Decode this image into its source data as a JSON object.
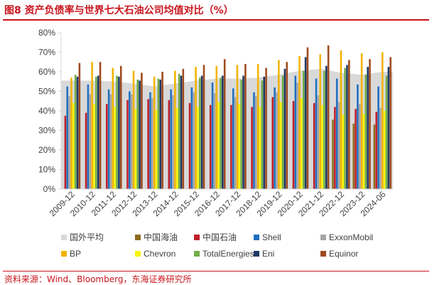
{
  "figure": {
    "title": "图8  资产负债率与世界七大石油公司均值对比（%）",
    "source": "资料来源：Wind、Bloomberg，东海证券研究所"
  },
  "colors": {
    "title_red": "#c8141d",
    "axis": "#d9d9d9",
    "series": [
      "#d9d9d9",
      "#8c6d1f",
      "#c0202a",
      "#1f6fbf",
      "#a6a6a6",
      "#f2b300",
      "#f7f500",
      "#70ad47",
      "#1f3864",
      "#9e4a1e"
    ]
  },
  "chart_data": {
    "type": "bar",
    "title": "",
    "xlabel": "",
    "ylabel": "",
    "ylim": [
      0,
      80
    ],
    "yticks": [
      0,
      10,
      20,
      30,
      40,
      50,
      60,
      70,
      80
    ],
    "ytick_labels": [
      "0%",
      "10%",
      "20%",
      "30%",
      "40%",
      "50%",
      "60%",
      "70%",
      "80%"
    ],
    "grid": false,
    "legend_position": "bottom",
    "categories": [
      "2009-12",
      "2010-12",
      "2011-12",
      "2012-12",
      "2013-12",
      "2014-12",
      "2015-12",
      "2016-12",
      "2017-12",
      "2018-12",
      "2019-12",
      "2020-12",
      "2021-12",
      "2022-12",
      "2023-12",
      "2024-06"
    ],
    "series": [
      {
        "name": "国外平均",
        "type": "area",
        "values": [
          55.5,
          55.5,
          55.0,
          54.0,
          52.5,
          54.0,
          55.5,
          56.5,
          56.5,
          57.0,
          58.5,
          60.5,
          61.5,
          59.5,
          58.5,
          60.0
        ]
      },
      {
        "name": "中国海油",
        "values": [
          null,
          null,
          null,
          null,
          null,
          null,
          null,
          null,
          null,
          null,
          null,
          null,
          null,
          35.5,
          33.5,
          33.0
        ]
      },
      {
        "name": "中国石油",
        "values": [
          37.5,
          39.0,
          43.5,
          45.5,
          46.0,
          45.5,
          44.0,
          43.0,
          43.0,
          42.0,
          47.0,
          45.0,
          44.0,
          42.0,
          41.0,
          39.5
        ]
      },
      {
        "name": "Shell",
        "values": [
          52.5,
          53.5,
          51.0,
          50.0,
          49.5,
          51.0,
          52.0,
          54.5,
          51.5,
          49.5,
          52.0,
          58.0,
          56.5,
          56.5,
          53.5,
          52.5
        ]
      },
      {
        "name": "ExxonMobil",
        "values": [
          47.5,
          48.5,
          48.5,
          48.5,
          46.5,
          48.0,
          49.5,
          49.0,
          47.0,
          47.5,
          49.5,
          54.5,
          48.0,
          44.5,
          43.5,
          41.5
        ]
      },
      {
        "name": "BP",
        "values": [
          57.0,
          65.0,
          62.0,
          60.5,
          57.5,
          60.5,
          62.5,
          63.0,
          63.5,
          64.0,
          66.0,
          68.0,
          69.0,
          71.0,
          69.5,
          70.0
        ]
      },
      {
        "name": "Chevron",
        "values": [
          44.0,
          43.5,
          42.0,
          41.0,
          40.5,
          41.5,
          42.0,
          44.5,
          43.5,
          42.0,
          44.5,
          46.5,
          43.0,
          38.0,
          38.5,
          40.0
        ]
      },
      {
        "name": "TotalEnergies",
        "values": [
          58.5,
          57.5,
          58.0,
          56.0,
          56.5,
          59.0,
          57.0,
          57.0,
          56.0,
          55.5,
          58.0,
          60.5,
          60.5,
          62.0,
          58.5,
          58.0
        ]
      },
      {
        "name": "Eni",
        "values": [
          57.5,
          58.0,
          57.5,
          55.5,
          56.0,
          58.0,
          58.0,
          58.0,
          58.0,
          57.5,
          61.5,
          67.5,
          63.0,
          63.5,
          62.5,
          62.5
        ]
      },
      {
        "name": "Equinor",
        "values": [
          64.5,
          65.0,
          63.0,
          59.5,
          60.0,
          61.5,
          63.5,
          66.5,
          64.0,
          62.0,
          65.0,
          72.5,
          73.5,
          66.0,
          66.5,
          67.5
        ]
      }
    ]
  }
}
